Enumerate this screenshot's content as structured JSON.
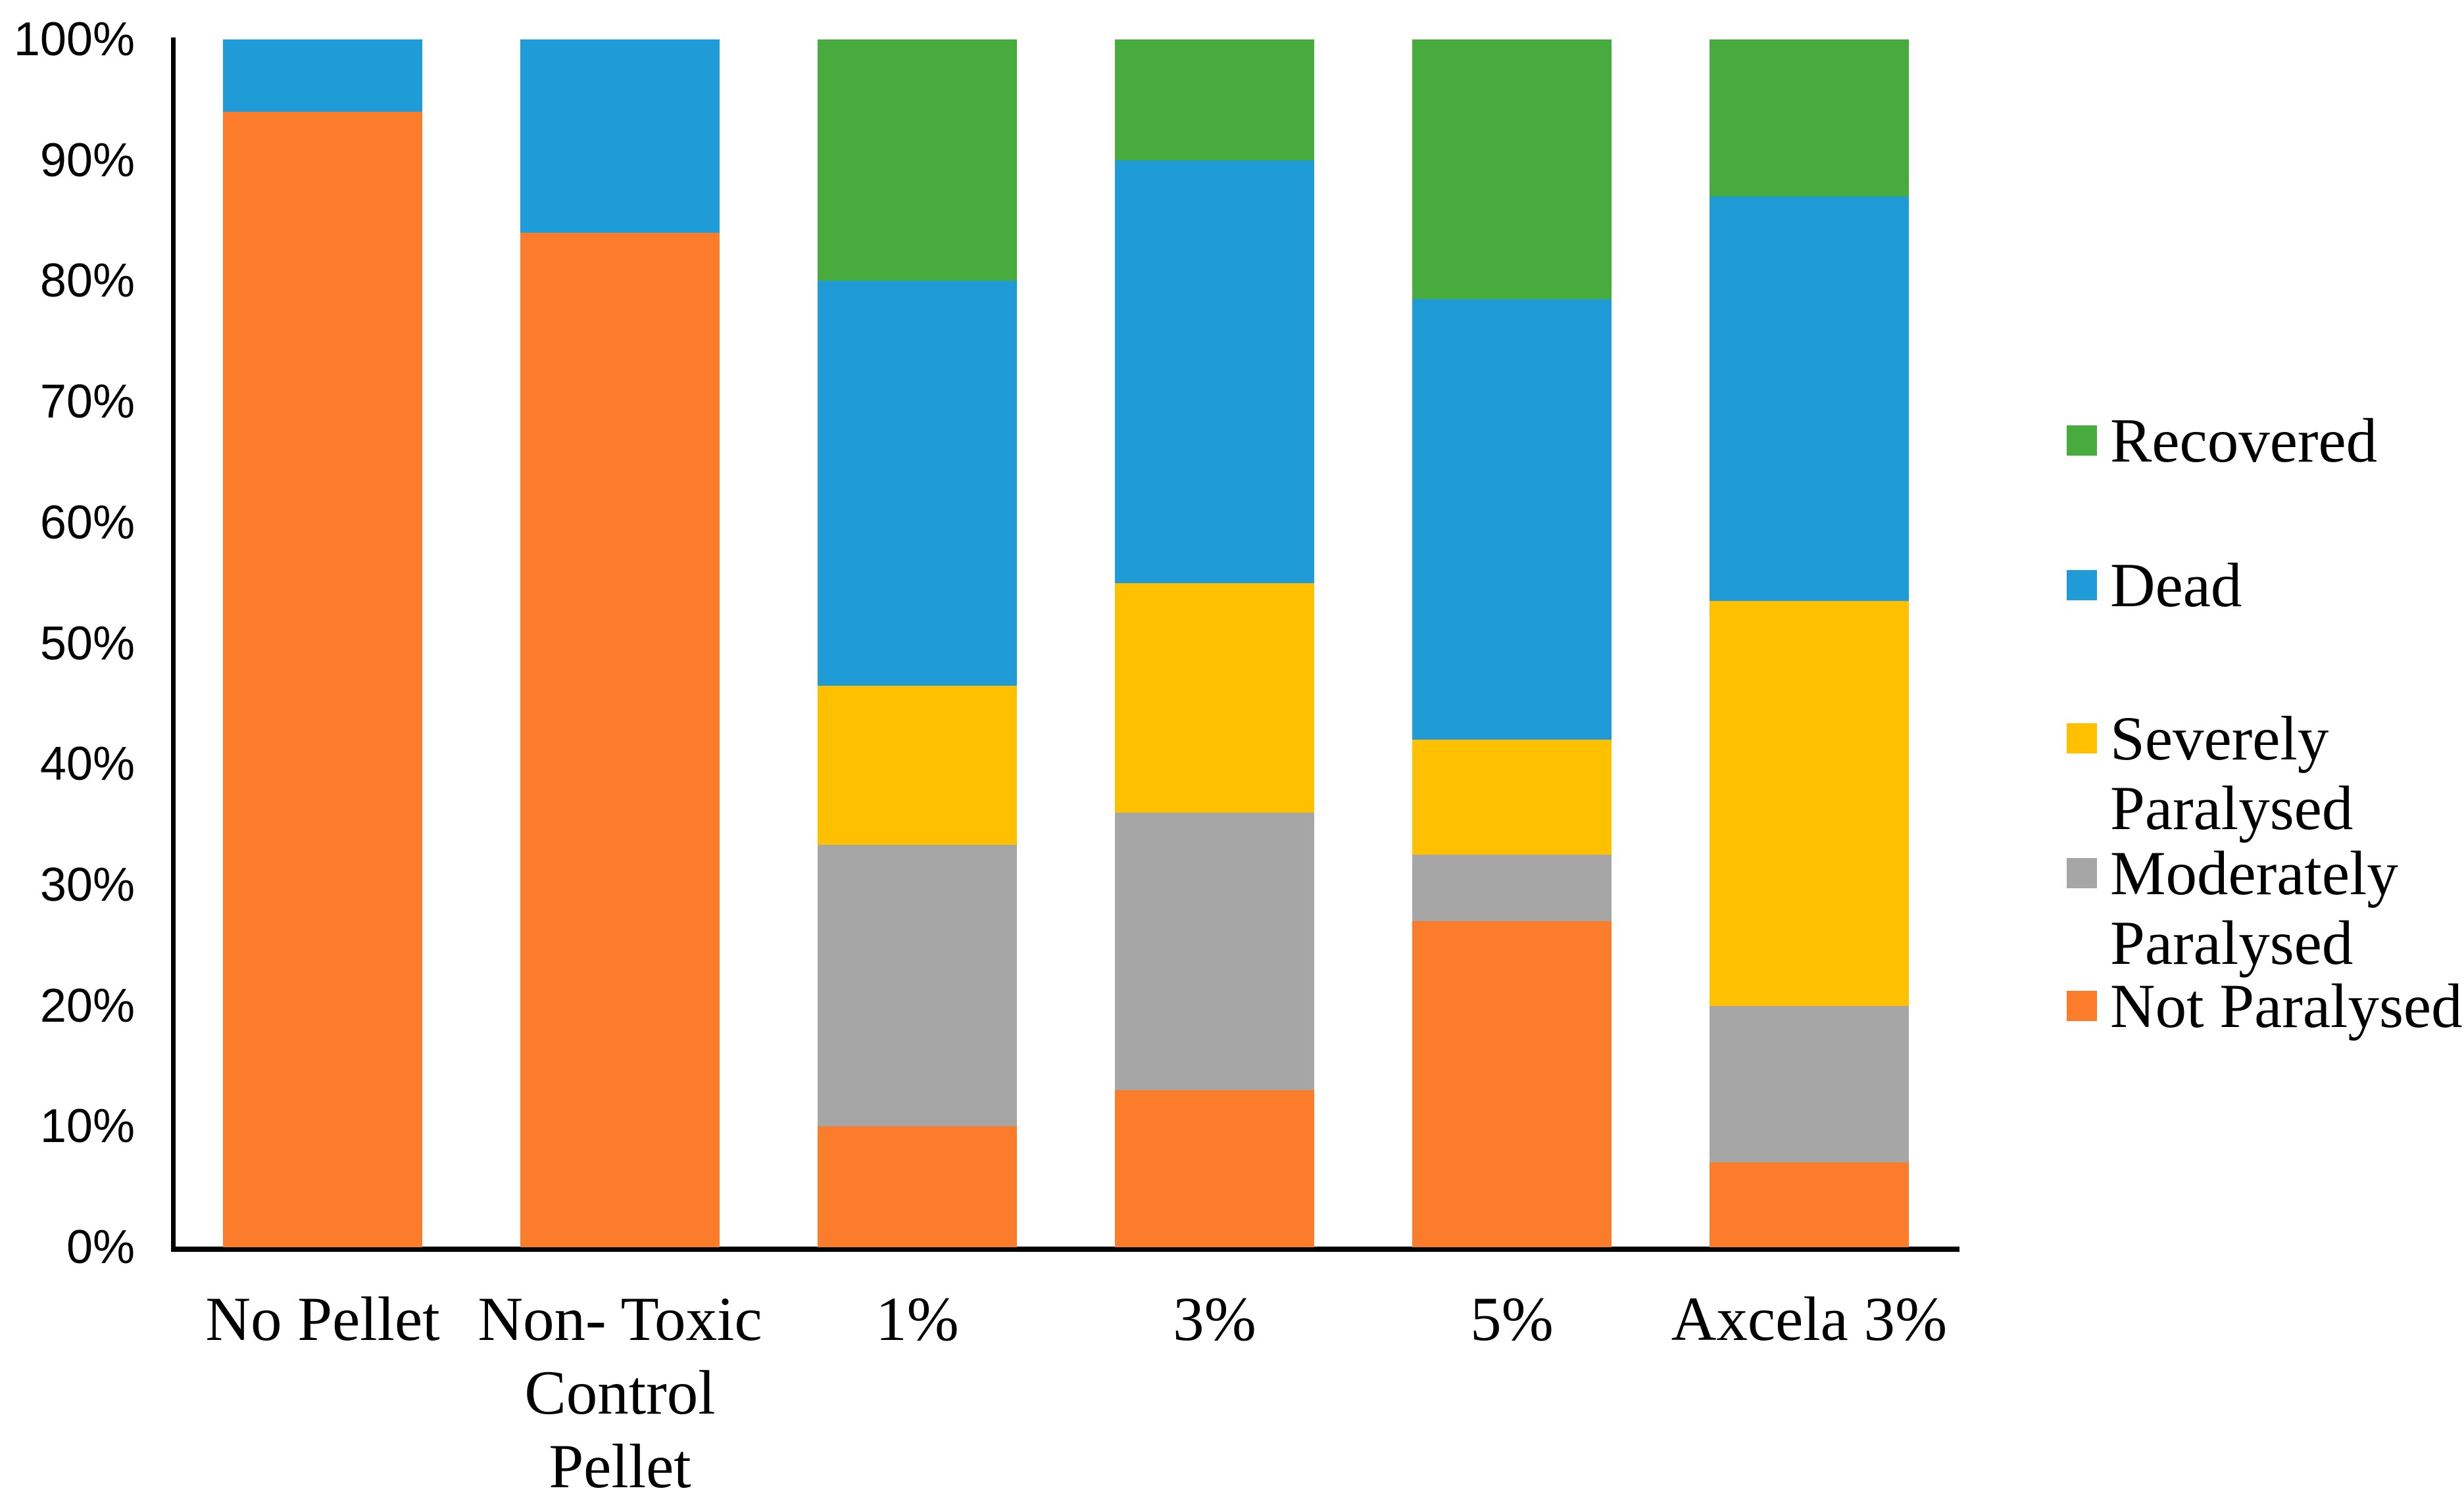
{
  "chart_data": {
    "type": "bar",
    "subtype": "stacked-100-percent-column",
    "title": "",
    "xlabel": "",
    "ylabel": "",
    "ylim": [
      0,
      100
    ],
    "grid": false,
    "legend_position": "right",
    "categories": [
      "No Pellet",
      "Non- Toxic Control Pellet",
      "1%",
      "3%",
      "5%",
      "Axcela 3%"
    ],
    "category_label_lines": [
      [
        "No Pellet"
      ],
      [
        "Non- Toxic",
        "Control",
        "Pellet"
      ],
      [
        "1%"
      ],
      [
        "3%"
      ],
      [
        "5%"
      ],
      [
        "Axcela 3%"
      ]
    ],
    "y_ticks": [
      "0%",
      "10%",
      "20%",
      "30%",
      "40%",
      "50%",
      "60%",
      "70%",
      "80%",
      "90%",
      "100%"
    ],
    "series": [
      {
        "name": "Not Paralysed",
        "color": "#FB7D2B",
        "values": [
          94,
          84,
          10,
          13,
          27,
          7
        ]
      },
      {
        "name": "Moderately Paralysed",
        "color": "#A6A6A6",
        "values": [
          0,
          0,
          23.3,
          23,
          5.5,
          13
        ]
      },
      {
        "name": "Severely Paralysed",
        "color": "#FFC000",
        "values": [
          0,
          0,
          13.2,
          19,
          9.5,
          33.5
        ]
      },
      {
        "name": "Dead",
        "color": "#1F9CD7",
        "values": [
          6,
          16,
          33.5,
          35,
          36.5,
          33.5
        ]
      },
      {
        "name": "Recovered",
        "color": "#47AC3D",
        "values": [
          0,
          0,
          20,
          10,
          21.5,
          13
        ]
      }
    ],
    "legend": [
      {
        "label": "Recovered",
        "lines": [
          "Recovered"
        ],
        "color": "#47AC3D"
      },
      {
        "label": "Dead",
        "lines": [
          "Dead"
        ],
        "color": "#1F9CD7"
      },
      {
        "label": "Severely Paralysed",
        "lines": [
          "Severely",
          "Paralysed"
        ],
        "color": "#FFC000"
      },
      {
        "label": "Moderately Paralysed",
        "lines": [
          "Moderately",
          "Paralysed"
        ],
        "color": "#A6A6A6"
      },
      {
        "label": "Not Paralysed",
        "lines": [
          "Not Paralysed"
        ],
        "color": "#FB7D2B"
      }
    ],
    "axis_color": "#000000",
    "background_color": "#FFFFFF"
  }
}
